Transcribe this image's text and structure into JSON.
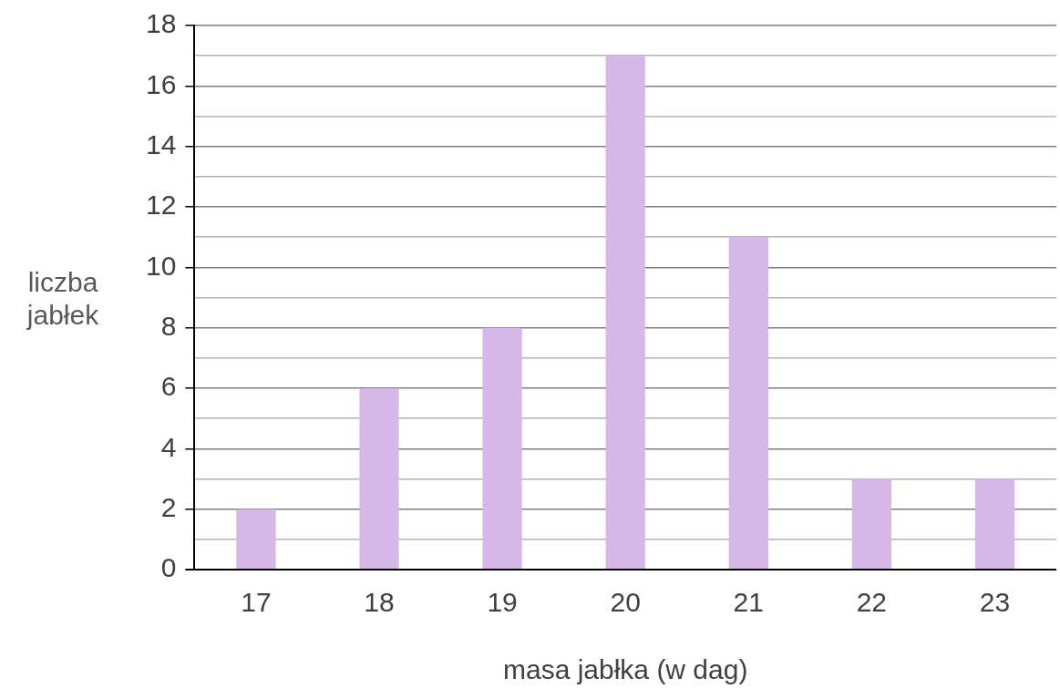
{
  "chart_data": {
    "type": "bar",
    "xlabel": "masa jabłka (w dag)",
    "ylabel": "liczba jabłek",
    "categories": [
      "17",
      "18",
      "19",
      "20",
      "21",
      "22",
      "23"
    ],
    "series": [
      {
        "color": "#d5b8e8",
        "values": [
          2,
          6,
          8,
          17,
          11,
          3,
          3
        ]
      }
    ],
    "ylim": [
      0,
      18
    ],
    "yticks": [
      0,
      {
        "value": 1,
        "label": null
      },
      2,
      {
        "value": 3,
        "label": null
      },
      4,
      {
        "value": 5,
        "label": null
      },
      6,
      {
        "value": 7,
        "label": null
      },
      8,
      {
        "value": 9,
        "label": null
      },
      10,
      {
        "value": 11,
        "label": null
      },
      12,
      {
        "value": 13,
        "label": null
      },
      14,
      {
        "value": 15,
        "label": null
      },
      16,
      {
        "value": 17,
        "label": null
      },
      18
    ],
    "grid": "y",
    "legend": false
  }
}
